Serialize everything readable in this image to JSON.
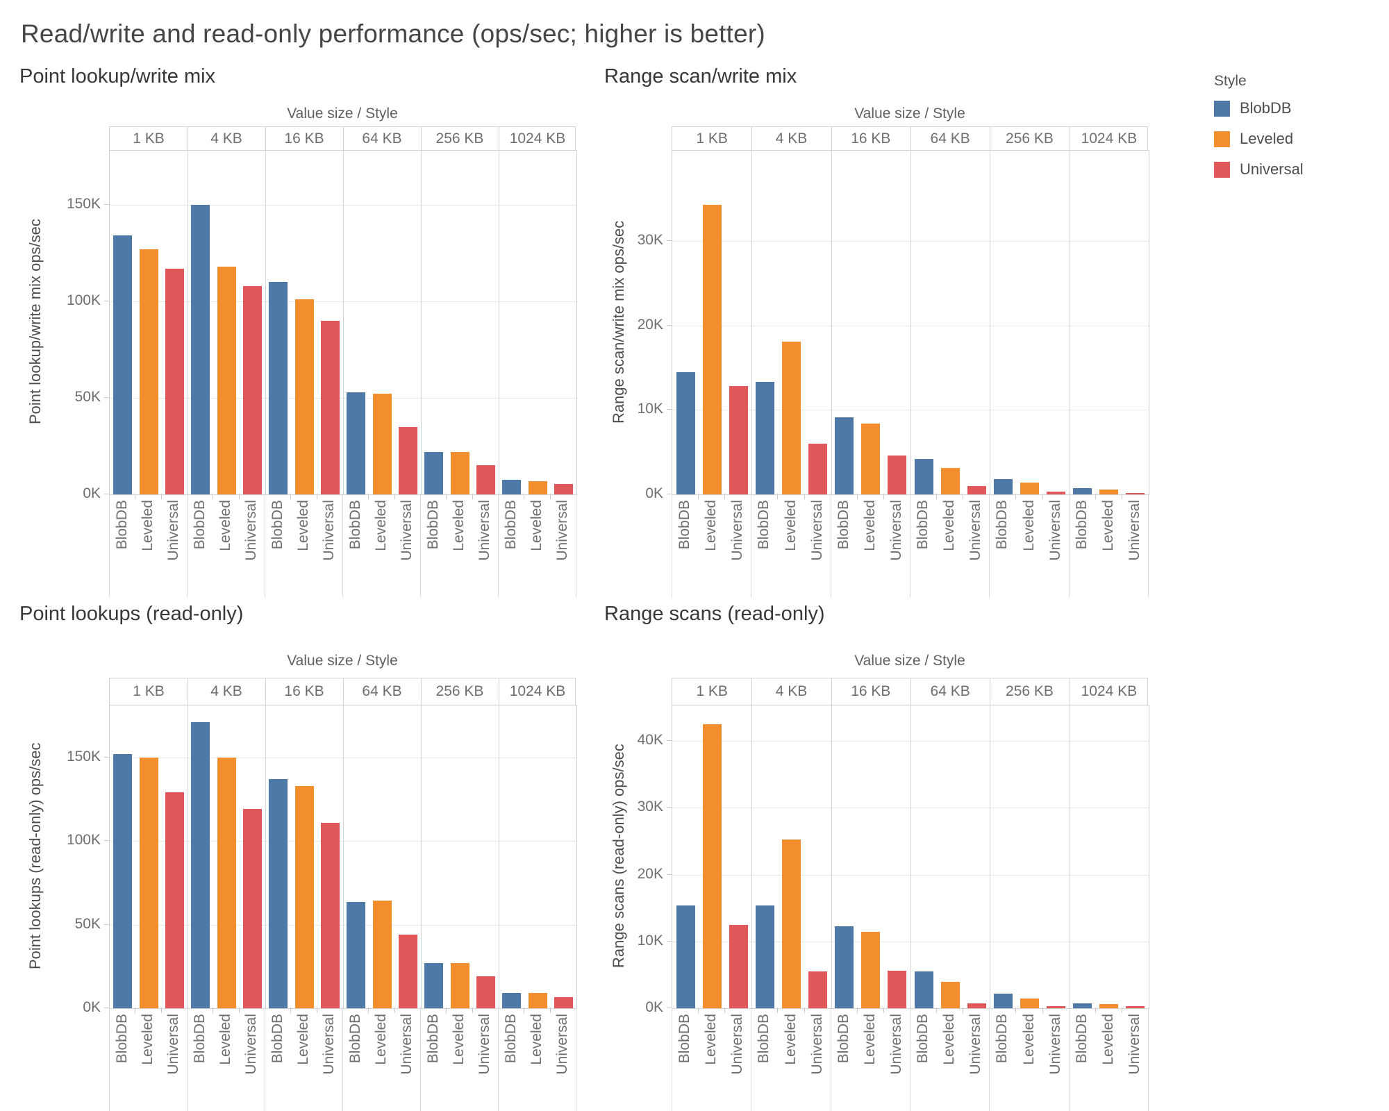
{
  "title": "Read/write and read-only performance (ops/sec; higher is better)",
  "legend": {
    "title": "Style",
    "items": [
      {
        "label": "BlobDB",
        "color": "#4e79a7"
      },
      {
        "label": "Leveled",
        "color": "#f28e2b"
      },
      {
        "label": "Universal",
        "color": "#e15759"
      }
    ]
  },
  "chart_data": [
    {
      "type": "bar",
      "title": "Point lookup/write mix",
      "col_header": "Value size / Style",
      "ylabel": "Point lookup/write mix ops/sec",
      "unit": "K ops/sec",
      "categories": [
        "1 KB",
        "4 KB",
        "16 KB",
        "64 KB",
        "256 KB",
        "1024 KB"
      ],
      "series": [
        {
          "name": "BlobDB",
          "color": "#4e79a7",
          "values": [
            134,
            150,
            110,
            53,
            22,
            7.5
          ]
        },
        {
          "name": "Leveled",
          "color": "#f28e2b",
          "values": [
            127,
            118,
            101,
            52,
            22,
            7
          ]
        },
        {
          "name": "Universal",
          "color": "#e15759",
          "values": [
            117,
            108,
            90,
            35,
            15,
            5.5
          ]
        }
      ],
      "yticks": [
        {
          "label": "0K",
          "value": 0
        },
        {
          "label": "50K",
          "value": 50
        },
        {
          "label": "100K",
          "value": 100
        },
        {
          "label": "150K",
          "value": 150
        }
      ],
      "ylim": [
        0,
        178
      ],
      "grid": true,
      "legend_position": "dashboard-top-right"
    },
    {
      "type": "bar",
      "title": "Range scan/write mix",
      "col_header": "Value size / Style",
      "ylabel": "Range scan/write mix ops/sec",
      "unit": "K ops/sec",
      "categories": [
        "1 KB",
        "4 KB",
        "16 KB",
        "64 KB",
        "256 KB",
        "1024 KB"
      ],
      "series": [
        {
          "name": "BlobDB",
          "color": "#4e79a7",
          "values": [
            14.5,
            13.3,
            9.1,
            4.2,
            1.8,
            0.7
          ]
        },
        {
          "name": "Leveled",
          "color": "#f28e2b",
          "values": [
            34.3,
            18.1,
            8.4,
            3.1,
            1.4,
            0.55
          ]
        },
        {
          "name": "Universal",
          "color": "#e15759",
          "values": [
            12.8,
            6.0,
            4.6,
            1.0,
            0.3,
            0.15
          ]
        }
      ],
      "yticks": [
        {
          "label": "0K",
          "value": 0
        },
        {
          "label": "10K",
          "value": 10
        },
        {
          "label": "20K",
          "value": 20
        },
        {
          "label": "30K",
          "value": 30
        }
      ],
      "ylim": [
        0,
        40.7
      ],
      "grid": true,
      "legend_position": "dashboard-top-right"
    },
    {
      "type": "bar",
      "title": "Point lookups (read-only)",
      "col_header": "Value size / Style",
      "ylabel": "Point lookups (read-only) ops/sec",
      "unit": "K ops/sec",
      "categories": [
        "1 KB",
        "4 KB",
        "16 KB",
        "64 KB",
        "256 KB",
        "1024 KB"
      ],
      "series": [
        {
          "name": "BlobDB",
          "color": "#4e79a7",
          "values": [
            152,
            171,
            137,
            63.5,
            27,
            9
          ]
        },
        {
          "name": "Leveled",
          "color": "#f28e2b",
          "values": [
            150,
            150,
            133,
            64.5,
            27,
            9
          ]
        },
        {
          "name": "Universal",
          "color": "#e15759",
          "values": [
            129,
            119,
            111,
            44,
            19,
            6.5
          ]
        }
      ],
      "yticks": [
        {
          "label": "0K",
          "value": 0
        },
        {
          "label": "50K",
          "value": 50
        },
        {
          "label": "100K",
          "value": 100
        },
        {
          "label": "150K",
          "value": 150
        }
      ],
      "ylim": [
        0,
        181
      ],
      "grid": true,
      "legend_position": "dashboard-top-right"
    },
    {
      "type": "bar",
      "title": "Range scans (read-only)",
      "col_header": "Value size / Style",
      "ylabel": "Range scans (read-only) ops/sec",
      "unit": "K ops/sec",
      "categories": [
        "1 KB",
        "4 KB",
        "16 KB",
        "64 KB",
        "256 KB",
        "1024 KB"
      ],
      "series": [
        {
          "name": "BlobDB",
          "color": "#4e79a7",
          "values": [
            15.4,
            15.4,
            12.3,
            5.5,
            2.2,
            0.7
          ]
        },
        {
          "name": "Leveled",
          "color": "#f28e2b",
          "values": [
            42.5,
            25.2,
            11.4,
            4.0,
            1.5,
            0.6
          ]
        },
        {
          "name": "Universal",
          "color": "#e15759",
          "values": [
            12.5,
            5.5,
            5.6,
            0.7,
            0.35,
            0.35
          ]
        }
      ],
      "yticks": [
        {
          "label": "0K",
          "value": 0
        },
        {
          "label": "10K",
          "value": 10
        },
        {
          "label": "20K",
          "value": 20
        },
        {
          "label": "30K",
          "value": 30
        },
        {
          "label": "40K",
          "value": 40
        }
      ],
      "ylim": [
        0,
        45.3
      ],
      "grid": true,
      "legend_position": "dashboard-top-right"
    }
  ]
}
